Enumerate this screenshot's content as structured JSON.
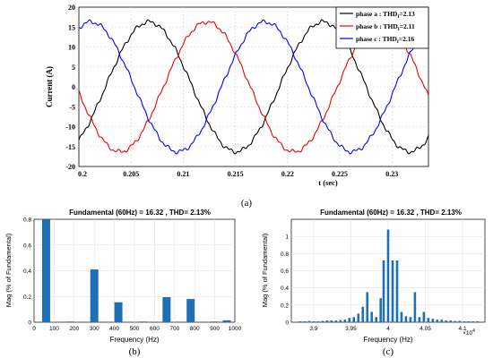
{
  "chart_data": [
    {
      "type": "line",
      "title": "",
      "xlabel": "t (sec)",
      "ylabel": "Current (A)",
      "xlim": [
        0.2,
        0.2335
      ],
      "ylim": [
        -20,
        20
      ],
      "x_ticks": [
        "0.2",
        "0.205",
        "0.21",
        "0.215",
        "0.22",
        "0.225",
        "0.23"
      ],
      "y_ticks": [
        "20",
        "15",
        "10",
        "5",
        "0",
        "-5",
        "-10",
        "-15",
        "-20"
      ],
      "frequency_hz": 60,
      "amplitude": 16.3,
      "grid": true,
      "legend_position": "top-right",
      "series": [
        {
          "name": "phase a : THD",
          "thd": "=2.13",
          "color": "#000000",
          "phase_deg": -55
        },
        {
          "name": "phase b : THD",
          "thd": "=2.11",
          "color": "#ee0000",
          "phase_deg": -175
        },
        {
          "name": "phase c : THD",
          "thd": "=2.16",
          "color": "#0000ff",
          "phase_deg": 65
        }
      ],
      "caption": "(a)"
    },
    {
      "type": "bar",
      "title": "Fundamental (60Hz) = 16.32 , THD= 2.13%",
      "xlabel": "Frequency (Hz)",
      "ylabel": "Mag (% of Fundamental)",
      "xlim": [
        0,
        1000
      ],
      "ylim": [
        0,
        0.8
      ],
      "x_ticks": [
        "0",
        "100",
        "200",
        "300",
        "400",
        "500",
        "600",
        "700",
        "800",
        "900",
        "1000"
      ],
      "y_ticks": [
        "0",
        "0.2",
        "0.4",
        "0.6",
        "0.8"
      ],
      "grid": true,
      "bar_color": "#1f6fb4",
      "x": [
        60,
        180,
        300,
        420,
        540,
        660,
        780,
        900,
        960
      ],
      "values": [
        0.8,
        0.005,
        0.41,
        0.155,
        0.005,
        0.195,
        0.18,
        0.005,
        0.015
      ],
      "caption": "(b)"
    },
    {
      "type": "bar",
      "title": "Fundamental (60Hz) = 16.32 , THD= 2.13%",
      "xlabel": "Frequency (Hz)",
      "ylabel": "Mag (% of Fundamental)",
      "xlim": [
        38700,
        41300
      ],
      "ylim": [
        0,
        1.2
      ],
      "x_ticks": [
        "3.9",
        "3.95",
        "4",
        "4.05",
        "4.1"
      ],
      "x_tick_values": [
        39000,
        39500,
        40000,
        40500,
        41000
      ],
      "x_multiplier": "×10",
      "x_multiplier_exp": "4",
      "y_ticks": [
        "0",
        "0.2",
        "0.4",
        "0.6",
        "0.8",
        "1"
      ],
      "grid": true,
      "bar_color": "#1f6fb4",
      "x": [
        38820,
        38880,
        38940,
        39000,
        39060,
        39120,
        39180,
        39240,
        39300,
        39360,
        39420,
        39480,
        39540,
        39600,
        39660,
        39720,
        39780,
        39840,
        39900,
        39940,
        40000,
        40060,
        40120,
        40180,
        40240,
        40300,
        40360,
        40420,
        40480,
        40540,
        40600,
        40660,
        40720,
        40780,
        40840,
        40900,
        40960,
        41020,
        41080,
        41140,
        41200
      ],
      "values": [
        0.01,
        0.01,
        0.015,
        0.01,
        0.01,
        0.015,
        0.02,
        0.02,
        0.02,
        0.025,
        0.03,
        0.05,
        0.06,
        0.1,
        0.18,
        0.35,
        0.12,
        0.06,
        0.28,
        0.72,
        1.08,
        0.72,
        0.72,
        0.12,
        0.07,
        0.06,
        0.35,
        0.06,
        0.12,
        0.05,
        0.04,
        0.03,
        0.03,
        0.02,
        0.02,
        0.015,
        0.015,
        0.01,
        0.01,
        0.01,
        0.01
      ],
      "caption": "(c)"
    }
  ]
}
